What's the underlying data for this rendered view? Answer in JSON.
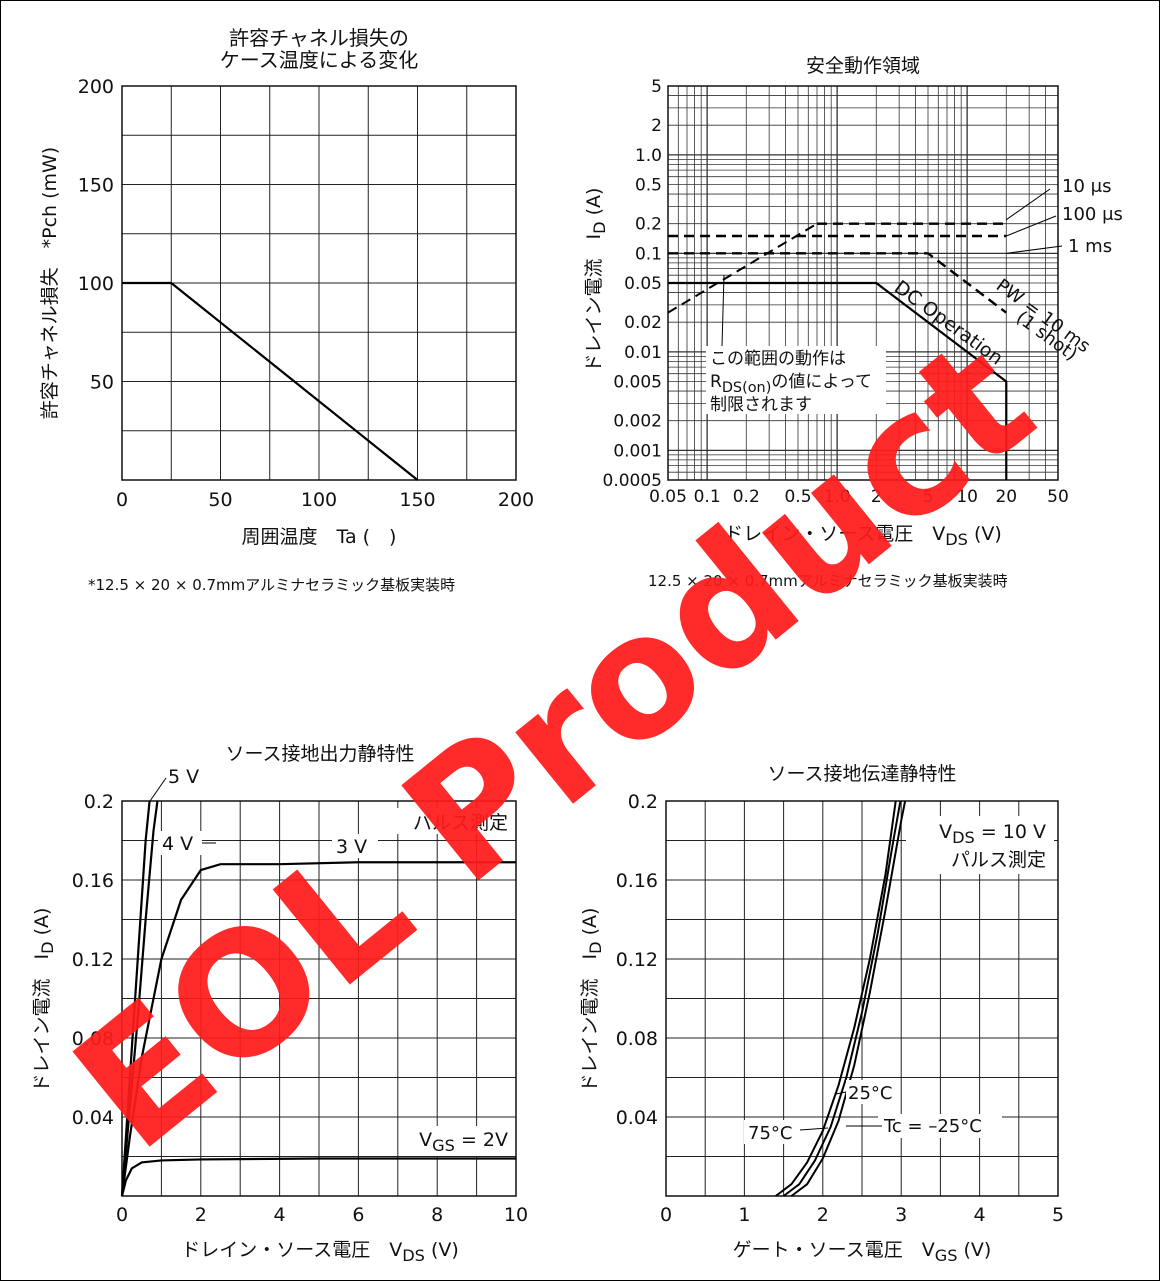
{
  "watermark": {
    "text": "EOL Product",
    "color": "#ff1a1a"
  },
  "chart_data": [
    {
      "type": "line",
      "title": [
        "許容チャネル損失の",
        "ケース温度による変化"
      ],
      "xlabel": "周囲温度　Ta (　)",
      "ylabel": "許容チャネル損失　*Pch (mW)",
      "xlim": [
        0,
        200
      ],
      "ylim": [
        0,
        200
      ],
      "xticks": [
        "0",
        "50",
        "100",
        "150",
        "200"
      ],
      "yticks": [
        "50",
        "100",
        "150",
        "200"
      ],
      "grid": true,
      "series": [
        {
          "x": [
            0,
            25,
            150
          ],
          "y": [
            100,
            100,
            0
          ]
        }
      ],
      "footnote": "*12.5 × 20 × 0.7mmアルミナセラミック基板実装時"
    },
    {
      "type": "line",
      "scale": "log-log",
      "title": "安全動作領域",
      "xlabel": "ドレイン・ソース電圧　V_DS (V)",
      "ylabel": "ドレイン電流　I_D (A)",
      "xlim": [
        0.05,
        50
      ],
      "ylim": [
        0.0005,
        5
      ],
      "xticks": [
        "0.05",
        "0.1",
        "0.2",
        "0.5",
        "1.0",
        "2",
        "5",
        "10",
        "20",
        "50"
      ],
      "yticks": [
        "0.0005",
        "0.001",
        "0.002",
        "0.005",
        "0.01",
        "0.02",
        "0.05",
        "0.1",
        "0.2",
        "0.5",
        "1.0",
        "2",
        "5"
      ],
      "grid": true,
      "series": [
        {
          "name": "10 μs",
          "x": [
            0.7,
            20
          ],
          "y": [
            0.2,
            0.2
          ]
        },
        {
          "name": "100 μs",
          "x": [
            0.05,
            20
          ],
          "y": [
            0.15,
            0.15
          ]
        },
        {
          "name": "1 ms",
          "x": [
            0.05,
            5,
            20
          ],
          "y": [
            0.1,
            0.1,
            0.025
          ]
        },
        {
          "name": "DC Operation",
          "x": [
            0.05,
            2,
            20,
            20
          ],
          "y": [
            0.05,
            0.05,
            0.005,
            0.0005
          ]
        },
        {
          "name": "R_DS(on) limit",
          "x": [
            0.05,
            0.7
          ],
          "y": [
            0.025,
            0.2
          ]
        }
      ],
      "labels": {
        "l10us": "10 μs",
        "l100us": "100 μs",
        "l1ms": "1 ms",
        "dc": "DC Operation",
        "pw1": "PW = 10 ms",
        "pw2": "(1 shot)",
        "note1": "この範囲の動作は",
        "note2_pre": "R",
        "note2_sub": "DS(on)",
        "note2_post": "の値によって",
        "note3": "制限されます"
      },
      "footnote": "12.5 × 20 × 0.7mmアルミナセラミック基板実装時"
    },
    {
      "type": "line",
      "title": "ソース接地出力静特性",
      "xlabel": "ドレイン・ソース電圧　V_DS (V)",
      "ylabel": "ドレイン電流　I_D (A)",
      "xlim": [
        0,
        10
      ],
      "ylim": [
        0,
        0.2
      ],
      "xticks": [
        "0",
        "2",
        "4",
        "6",
        "8",
        "10"
      ],
      "yticks": [
        "0.04",
        "0.08",
        "0.12",
        "0.16",
        "0.2"
      ],
      "grid": true,
      "series": [
        {
          "name": "5 V",
          "x": [
            0,
            0.2,
            0.4,
            0.6,
            0.7
          ],
          "y": [
            0,
            0.06,
            0.12,
            0.18,
            0.2
          ]
        },
        {
          "name": "4 V",
          "x": [
            0,
            0.2,
            0.4,
            0.6,
            0.8,
            0.9
          ],
          "y": [
            0,
            0.045,
            0.09,
            0.14,
            0.185,
            0.2
          ]
        },
        {
          "name": "3 V",
          "x": [
            0,
            0.2,
            0.5,
            1.0,
            1.5,
            2.0,
            2.5,
            4.0,
            6.0,
            10.0
          ],
          "y": [
            0,
            0.03,
            0.07,
            0.12,
            0.15,
            0.165,
            0.168,
            0.168,
            0.169,
            0.169
          ]
        },
        {
          "name": "V_GS = 2V",
          "x": [
            0,
            0.1,
            0.25,
            0.5,
            1.0,
            2.0,
            5.0,
            10.0
          ],
          "y": [
            0,
            0.008,
            0.014,
            0.017,
            0.018,
            0.0185,
            0.019,
            0.019
          ]
        }
      ],
      "labels": {
        "v5": "5 V",
        "v4": "4 V",
        "v3": "3 V",
        "vgs_pre": "V",
        "vgs_sub": "GS",
        "vgs_post": " = 2V",
        "pulse": "パルス測定"
      }
    },
    {
      "type": "line",
      "title": "ソース接地伝達静特性",
      "xlabel": "ゲート・ソース電圧　V_GS (V)",
      "ylabel": "ドレイン電流　I_D (A)",
      "xlim": [
        0,
        5
      ],
      "ylim": [
        0,
        0.2
      ],
      "xticks": [
        "0",
        "1",
        "2",
        "3",
        "4",
        "5"
      ],
      "yticks": [
        "0.04",
        "0.08",
        "0.12",
        "0.16",
        "0.2"
      ],
      "grid": true,
      "series": [
        {
          "name": "75°C",
          "x": [
            1.4,
            1.6,
            1.8,
            2.0,
            2.2,
            2.4,
            2.6,
            2.8,
            2.93
          ],
          "y": [
            0,
            0.006,
            0.017,
            0.033,
            0.056,
            0.085,
            0.12,
            0.163,
            0.2
          ]
        },
        {
          "name": "25°C",
          "x": [
            1.5,
            1.7,
            1.9,
            2.1,
            2.3,
            2.5,
            2.7,
            2.9,
            2.99
          ],
          "y": [
            0,
            0.006,
            0.018,
            0.035,
            0.06,
            0.093,
            0.133,
            0.18,
            0.2
          ]
        },
        {
          "name": "Tc = –25°C",
          "x": [
            1.6,
            1.8,
            2.0,
            2.2,
            2.4,
            2.6,
            2.8,
            3.0,
            3.05
          ],
          "y": [
            0,
            0.006,
            0.019,
            0.038,
            0.066,
            0.103,
            0.145,
            0.19,
            0.2
          ]
        }
      ],
      "labels": {
        "c25": "25°C",
        "c75": "75°C",
        "tc": "Tc = –25°C",
        "vds_pre": "V",
        "vds_sub": "DS",
        "vds_post": " = 10 V",
        "pulse": "パルス測定"
      }
    }
  ]
}
